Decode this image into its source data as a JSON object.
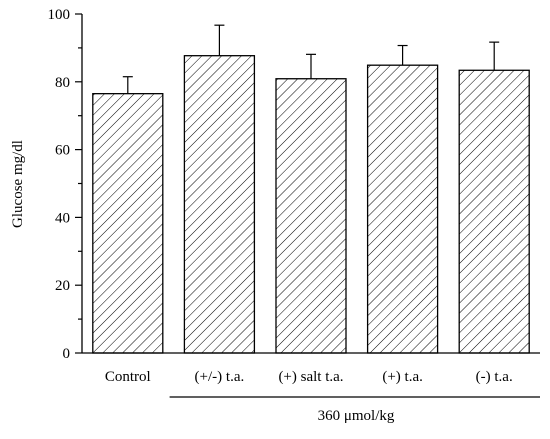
{
  "chart_data": {
    "type": "bar",
    "categories": [
      "Control",
      "(+/-) t.a.",
      "(+) salt t.a.",
      "(+) t.a.",
      "(-) t.a."
    ],
    "values": [
      76.5,
      87.7,
      80.9,
      84.9,
      83.4
    ],
    "errors": [
      5.0,
      9.0,
      7.2,
      5.8,
      8.3
    ],
    "ylabel": "Glucose mg/dl",
    "ylim": [
      0,
      100
    ],
    "yticks": [
      0,
      20,
      40,
      60,
      80,
      100
    ],
    "group_label": "360 μmol/kg",
    "group_categories": [
      "(+/-) t.a.",
      "(+) salt t.a.",
      "(+) t.a.",
      "(-) t.a."
    ],
    "bar_fill": "hatched",
    "bar_color": "#000000",
    "grid": false,
    "legend": false
  }
}
